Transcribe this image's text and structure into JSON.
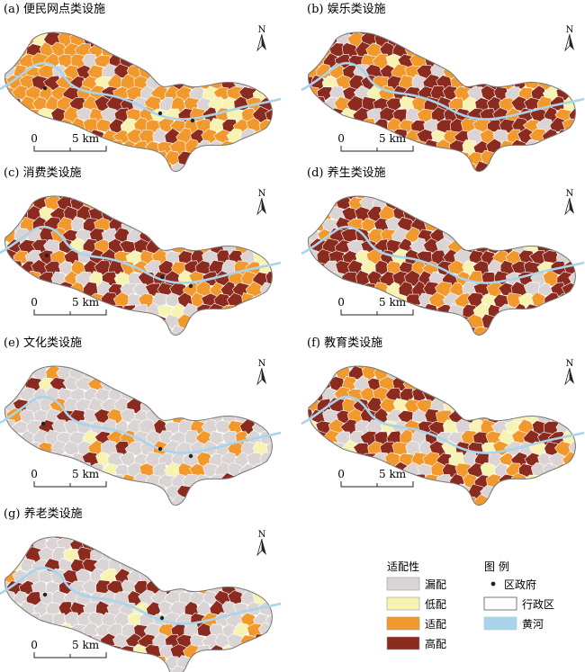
{
  "figure": {
    "panels": [
      {
        "id": "a",
        "title": "(a) 便民网点类设施",
        "mix": [
          0.2,
          0.07,
          0.53,
          0.2
        ],
        "seed": 11
      },
      {
        "id": "b",
        "title": "(b) 娱乐类设施",
        "mix": [
          0.12,
          0.05,
          0.33,
          0.5
        ],
        "seed": 23
      },
      {
        "id": "c",
        "title": "(c) 消费类设施",
        "mix": [
          0.2,
          0.08,
          0.22,
          0.5
        ],
        "seed": 37
      },
      {
        "id": "d",
        "title": "(d) 养生类设施",
        "mix": [
          0.18,
          0.04,
          0.22,
          0.56
        ],
        "seed": 41
      },
      {
        "id": "e",
        "title": "(e) 文化类设施",
        "mix": [
          0.7,
          0.04,
          0.12,
          0.14
        ],
        "seed": 53
      },
      {
        "id": "f",
        "title": "(f) 教育类设施",
        "mix": [
          0.22,
          0.1,
          0.3,
          0.38
        ],
        "seed": 67
      },
      {
        "id": "g",
        "title": "(g) 养老类设施",
        "mix": [
          0.62,
          0.06,
          0.08,
          0.24
        ],
        "seed": 79
      }
    ],
    "north_label": "N",
    "scale_zero": "0",
    "scale_label": "5 km"
  },
  "legend": {
    "suitability_title": "适配性",
    "legend_title": "图 例",
    "classes": [
      {
        "label": "漏配",
        "color": "#dbd4d4"
      },
      {
        "label": "低配",
        "color": "#f7f3b3"
      },
      {
        "label": "适配",
        "color": "#f2992e"
      },
      {
        "label": "高配",
        "color": "#8b2a1e"
      }
    ],
    "markers": [
      {
        "label": "区政府",
        "symbol": "dot"
      },
      {
        "label": "行政区",
        "symbol": "outline-box"
      },
      {
        "label": "黄河",
        "symbol": "river-box"
      }
    ]
  },
  "colors": {
    "river": "#a9d4ec",
    "outline": "#777777",
    "cell_border": "#ffffff",
    "text": "#222222"
  }
}
